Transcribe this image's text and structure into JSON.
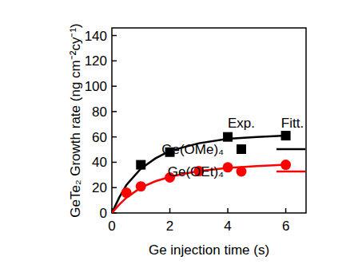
{
  "chart_data": {
    "type": "scatter",
    "x_label": "Ge injection time (s)",
    "y_label": "GeTe₂ Growth rate (ng cm⁻²cy⁻¹)",
    "annotations": [
      "Exp.",
      "Fitt."
    ],
    "legend": "upper right",
    "grid": false,
    "xlim": [
      0,
      6.7
    ],
    "ylim": [
      0,
      146
    ],
    "xticks": [
      0,
      2,
      4,
      6
    ],
    "yticks": [
      0,
      20,
      40,
      60,
      80,
      100,
      120,
      140
    ],
    "series": [
      {
        "name": "Ge(OMe)₄",
        "type": "scatter",
        "marker": "square",
        "color": "#000000",
        "x": [
          1,
          2,
          4,
          6
        ],
        "values": [
          38,
          48,
          60,
          61
        ]
      },
      {
        "name": "Ge(OEt)₄",
        "type": "scatter",
        "marker": "circle",
        "color": "#ff0000",
        "x": [
          0.5,
          1,
          2,
          3,
          4,
          6
        ],
        "values": [
          16,
          21,
          28,
          33,
          36,
          38
        ]
      },
      {
        "type": "line",
        "line_style": "solid",
        "color": "#000000",
        "x": [
          0,
          0.25,
          0.5,
          1,
          1.5,
          2,
          2.5,
          3,
          4,
          5,
          6
        ],
        "values": [
          0,
          12,
          22,
          35,
          43,
          49,
          52,
          55,
          58.5,
          60,
          61
        ]
      },
      {
        "type": "line",
        "line_style": "solid",
        "color": "#ff0000",
        "x": [
          0,
          0.25,
          0.5,
          1,
          1.5,
          2,
          2.5,
          3,
          4,
          5,
          6
        ],
        "values": [
          0,
          6.5,
          12,
          20,
          25,
          28.5,
          31,
          33,
          35.5,
          37,
          38
        ]
      }
    ]
  }
}
